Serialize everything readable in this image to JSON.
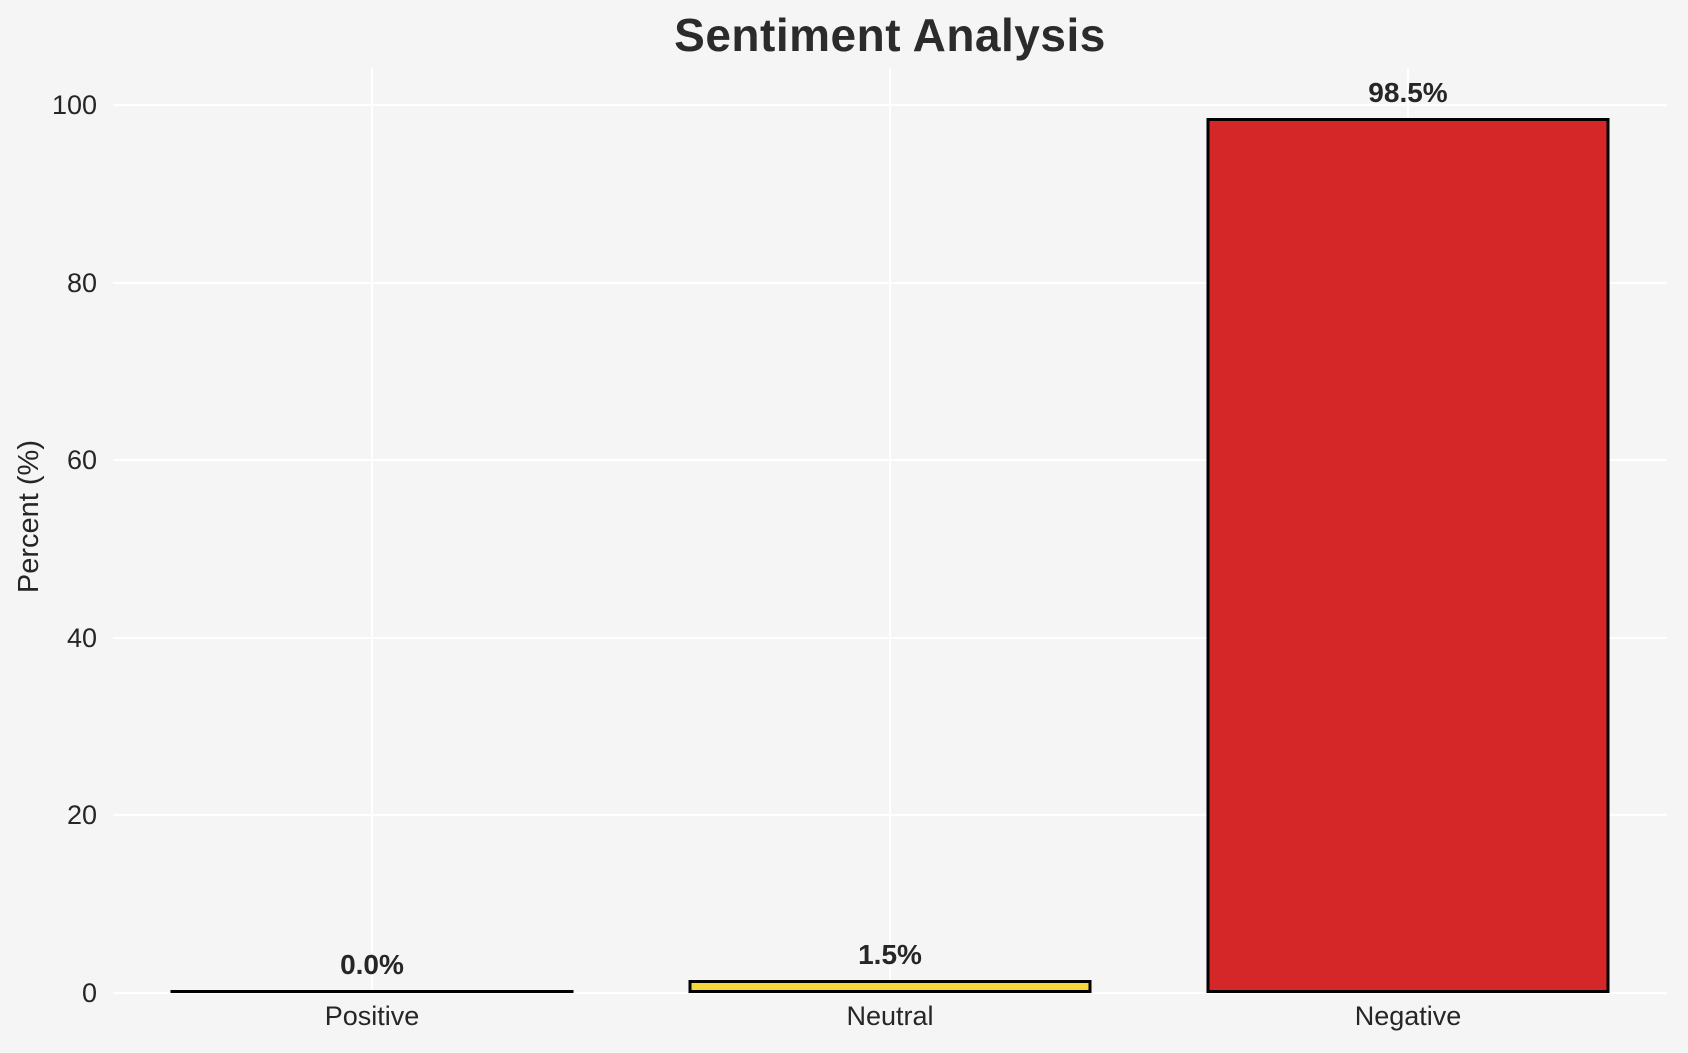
{
  "chart_data": {
    "type": "bar",
    "title": "Sentiment Analysis",
    "xlabel": "",
    "ylabel": "Percent (%)",
    "categories": [
      "Positive",
      "Neutral",
      "Negative"
    ],
    "values": [
      0.0,
      1.5,
      98.5
    ],
    "bars": [
      {
        "category": "Positive",
        "value": 0.0,
        "label": "0.0%",
        "color": null
      },
      {
        "category": "Neutral",
        "value": 1.5,
        "label": "1.5%",
        "color": "#F6D43B"
      },
      {
        "category": "Negative",
        "value": 98.5,
        "label": "98.5%",
        "color": "#D62728"
      }
    ],
    "ylim": [
      0,
      105
    ],
    "yticks": [
      0,
      20,
      40,
      60,
      80,
      100
    ],
    "grid": true,
    "legend": null,
    "colors": {
      "background": "#f5f5f5",
      "gridline": "#ffffff",
      "bar_edge": "#000000",
      "text": "#262626"
    }
  }
}
